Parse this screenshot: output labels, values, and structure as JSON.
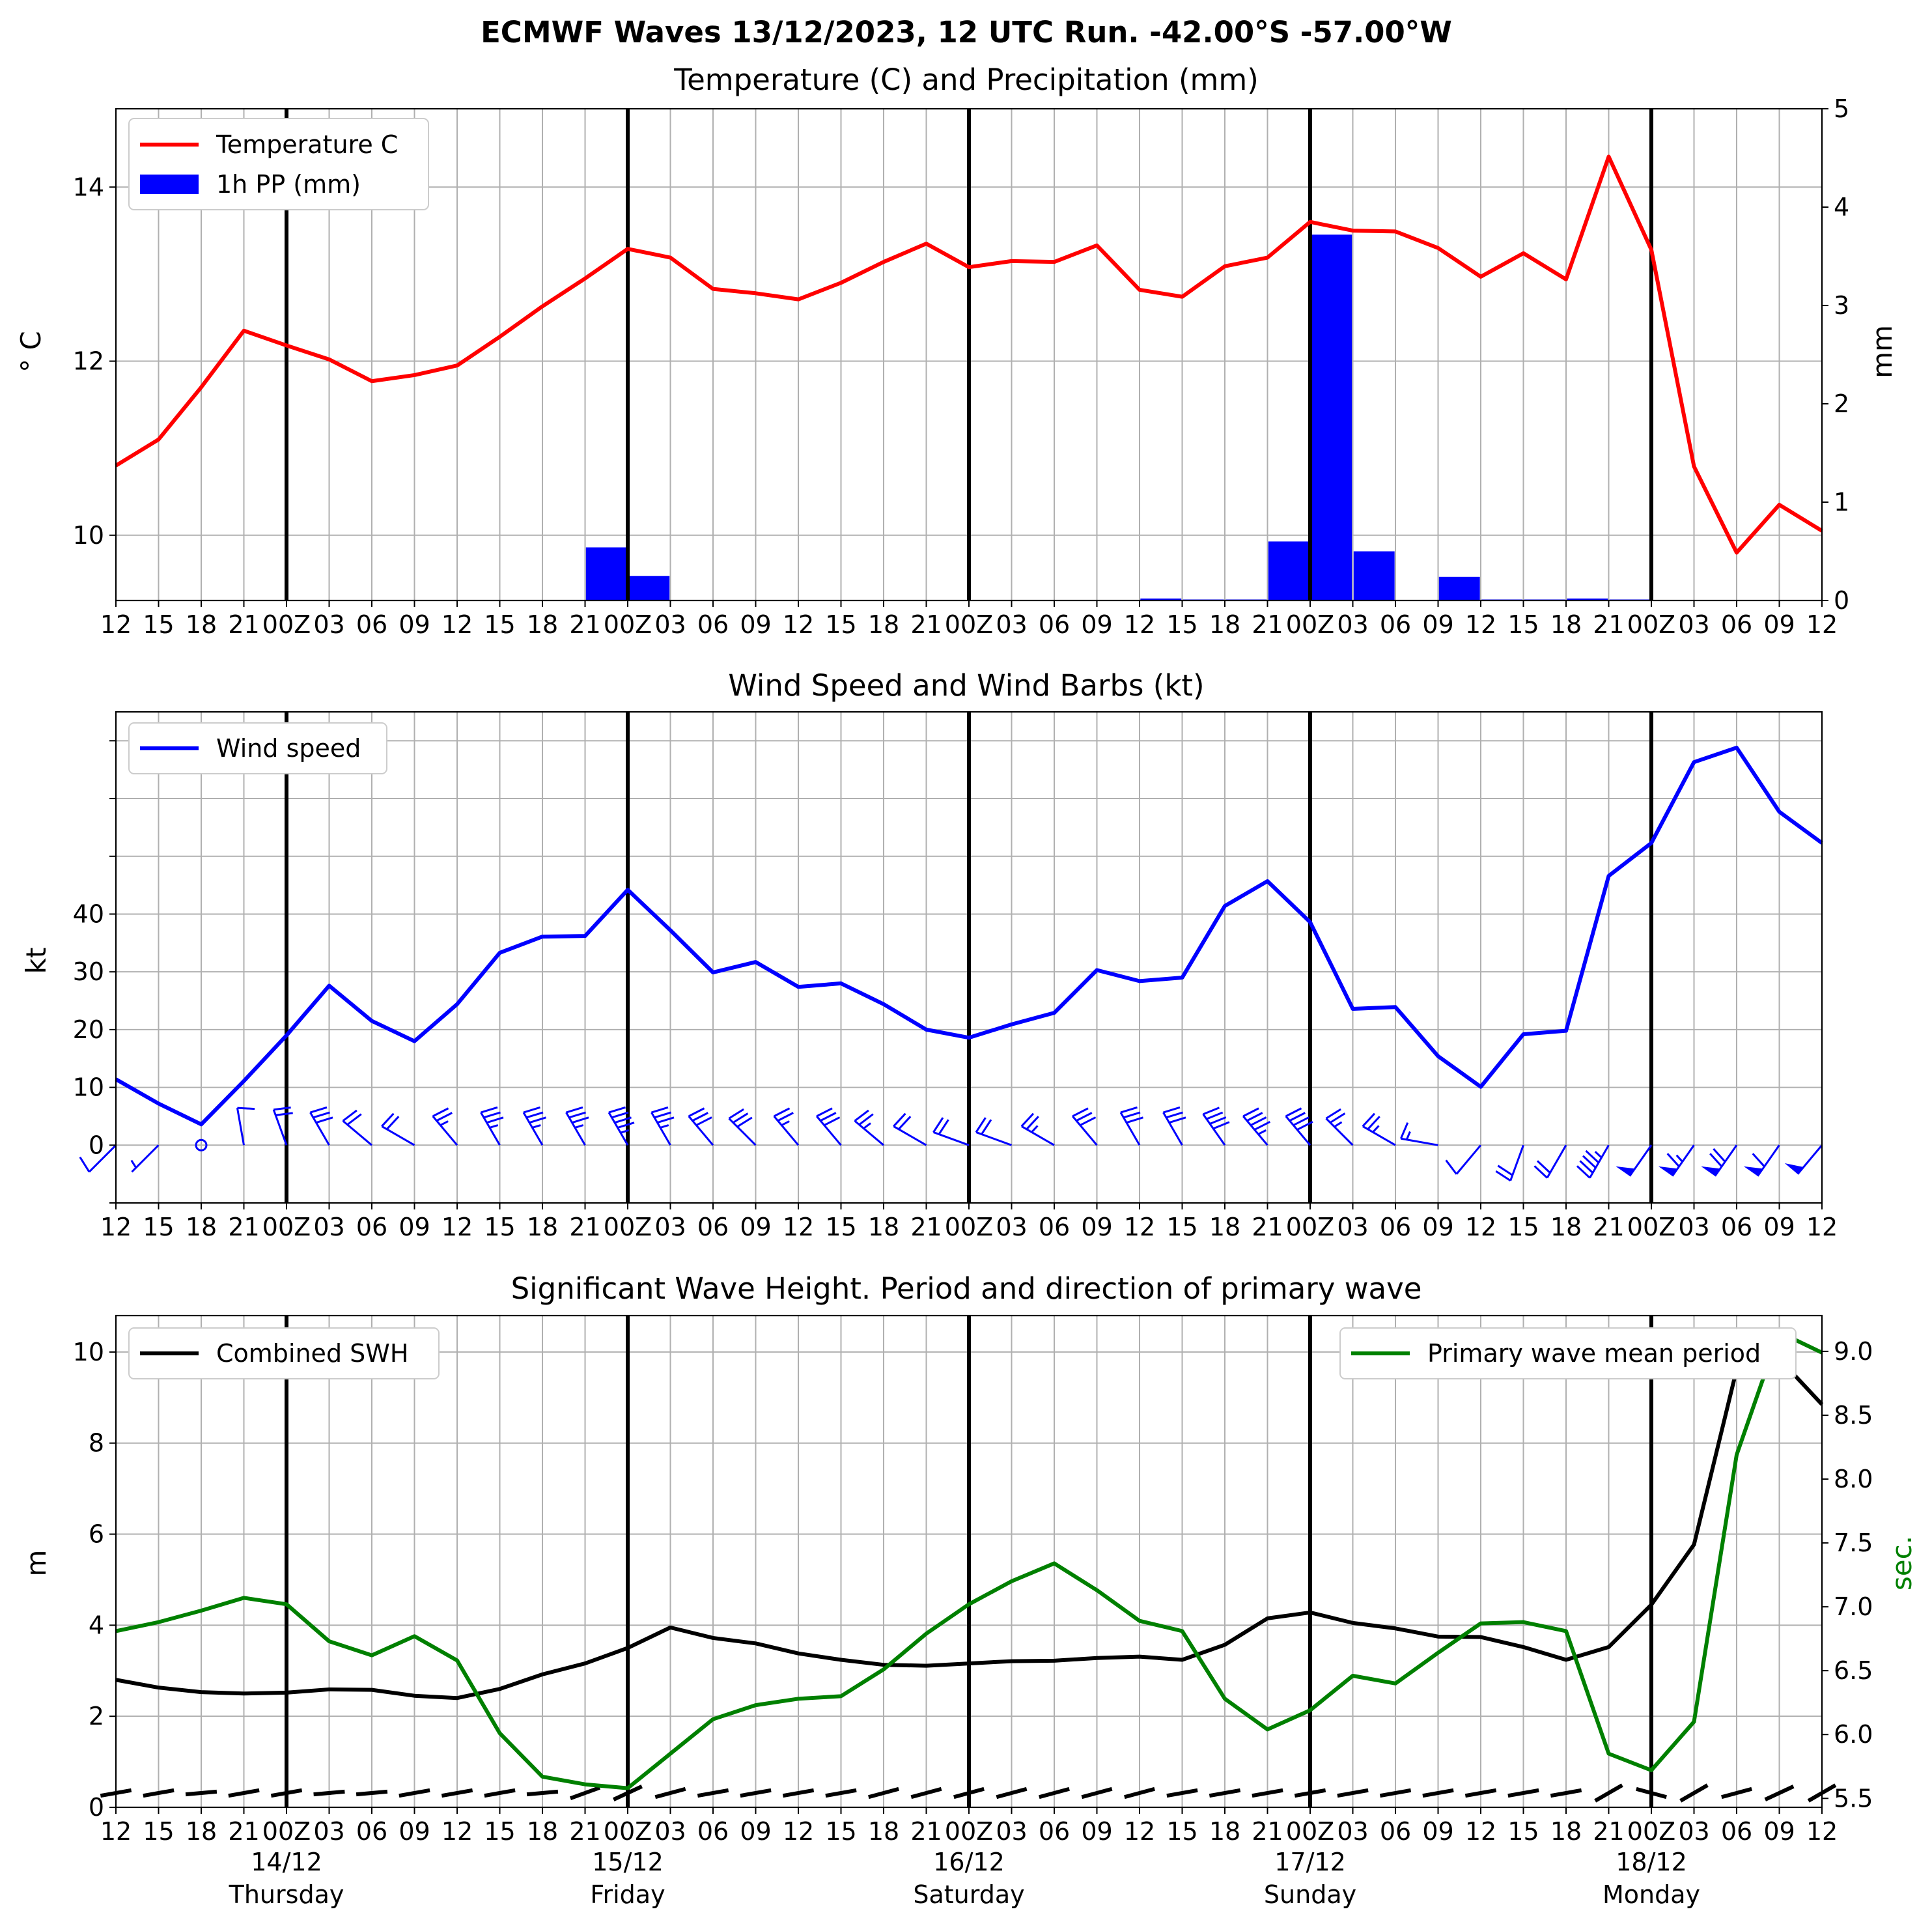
{
  "suptitle": "ECMWF Waves 13/12/2023, 12 UTC Run. -42.00°S -57.00°W",
  "colors": {
    "temperature": "#ff0000",
    "precip": "#0000ff",
    "wind": "#0000ff",
    "swh": "#000000",
    "period": "#008000",
    "grid": "#b0b0b0"
  },
  "x_tick_labels": [
    "12",
    "15",
    "18",
    "21",
    "00Z",
    "03",
    "06",
    "09",
    "12",
    "15",
    "18",
    "21",
    "00Z",
    "03",
    "06",
    "09",
    "12",
    "15",
    "18",
    "21",
    "00Z",
    "03",
    "06",
    "09",
    "12",
    "15",
    "18",
    "21",
    "00Z",
    "03",
    "06",
    "09",
    "12",
    "15",
    "18",
    "21",
    "00Z",
    "03",
    "06",
    "09",
    "12"
  ],
  "day_labels": [
    {
      "date": "14/12",
      "weekday": "Thursday"
    },
    {
      "date": "15/12",
      "weekday": "Friday"
    },
    {
      "date": "16/12",
      "weekday": "Saturday"
    },
    {
      "date": "17/12",
      "weekday": "Sunday"
    },
    {
      "date": "18/12",
      "weekday": "Monday"
    }
  ],
  "chart_data": [
    {
      "type": "line",
      "title": "Temperature (C) and Precipitation (mm)",
      "ylabel": "° C",
      "y2label": "mm",
      "ylim": [
        9.25,
        14.9
      ],
      "y2lim": [
        0,
        5
      ],
      "yticks": [
        10,
        12,
        14
      ],
      "y2ticks": [
        0,
        1,
        2,
        3,
        4,
        5
      ],
      "grid": true,
      "legend_position": "top-left",
      "series": [
        {
          "name": "Temperature C",
          "axis": "left",
          "type": "line",
          "values": [
            10.8,
            11.1,
            11.7,
            12.35,
            12.18,
            12.02,
            11.77,
            11.84,
            11.95,
            12.28,
            12.63,
            12.95,
            13.29,
            13.19,
            12.83,
            12.78,
            12.71,
            12.9,
            13.14,
            13.35,
            13.08,
            13.15,
            13.14,
            13.33,
            12.82,
            12.74,
            13.09,
            13.19,
            13.6,
            13.5,
            13.49,
            13.3,
            12.97,
            13.24,
            12.94,
            14.35,
            13.28,
            10.79,
            9.8,
            10.35,
            10.05
          ]
        },
        {
          "name": "1h PP (mm)",
          "axis": "right",
          "type": "bar",
          "values": [
            0,
            0,
            0,
            0,
            0,
            0,
            0,
            0,
            0,
            0,
            0,
            0.54,
            0.25,
            0,
            0,
            0,
            0,
            0,
            0,
            0,
            0,
            0,
            0,
            0,
            0.02,
            0.01,
            0.01,
            0.6,
            3.72,
            0.5,
            0,
            0.24,
            0.01,
            0.01,
            0.02,
            0.01,
            0,
            0,
            0,
            0
          ]
        }
      ]
    },
    {
      "type": "line",
      "title": "Wind Speed and Wind Barbs (kt)",
      "ylabel": "kt",
      "ylim": [
        -10,
        75
      ],
      "yticks": [
        0,
        10,
        20,
        30,
        40
      ],
      "grid": true,
      "legend_position": "top-left",
      "series": [
        {
          "name": "Wind speed",
          "values": [
            11.4,
            7.2,
            3.6,
            11.1,
            19.0,
            27.6,
            21.5,
            18.0,
            24.4,
            33.3,
            36.1,
            36.2,
            44.2,
            37.2,
            29.9,
            31.7,
            27.4,
            28.0,
            24.4,
            20.0,
            18.6,
            20.9,
            22.9,
            30.3,
            28.4,
            29.0,
            41.4,
            45.7,
            38.6,
            23.6,
            23.9,
            15.4,
            10.1,
            19.2,
            19.8,
            46.6,
            52.3,
            66.3,
            68.8,
            57.7,
            52.3
          ]
        }
      ],
      "wind_barb_direction_deg": [
        225,
        225,
        0,
        350,
        340,
        330,
        310,
        300,
        320,
        330,
        330,
        330,
        330,
        330,
        320,
        315,
        320,
        320,
        310,
        300,
        290,
        290,
        300,
        320,
        330,
        330,
        325,
        320,
        320,
        315,
        300,
        280,
        220,
        200,
        210,
        210,
        215,
        215,
        215,
        215,
        220
      ]
    },
    {
      "type": "line",
      "title": "Significant Wave Height. Period and direction of primary wave",
      "ylabel": "m",
      "y2label": "sec.",
      "ylim": [
        0,
        10.8
      ],
      "y2lim": [
        5.43,
        9.28
      ],
      "yticks": [
        0,
        2,
        4,
        6,
        8,
        10
      ],
      "y2ticks": [
        5.5,
        6.0,
        6.5,
        7.0,
        7.5,
        8.0,
        8.5,
        9.0
      ],
      "grid": true,
      "legend_position": "top-left and top-right",
      "series": [
        {
          "name": "Combined SWH",
          "axis": "left",
          "values": [
            2.8,
            2.63,
            2.53,
            2.5,
            2.52,
            2.59,
            2.58,
            2.45,
            2.4,
            2.6,
            2.92,
            3.16,
            3.5,
            3.95,
            3.72,
            3.6,
            3.38,
            3.24,
            3.13,
            3.11,
            3.16,
            3.21,
            3.22,
            3.28,
            3.31,
            3.24,
            3.57,
            4.15,
            4.28,
            4.05,
            3.93,
            3.75,
            3.74,
            3.52,
            3.24,
            3.52,
            4.45,
            5.77,
            9.62,
            9.85,
            8.85
          ]
        },
        {
          "name": "Primary wave mean period",
          "axis": "right",
          "values": [
            6.81,
            6.88,
            6.97,
            7.07,
            7.02,
            6.73,
            6.62,
            6.77,
            6.58,
            6.01,
            5.67,
            5.61,
            5.58,
            5.85,
            6.12,
            6.23,
            6.28,
            6.3,
            6.51,
            6.79,
            7.02,
            7.2,
            7.34,
            7.13,
            6.89,
            6.81,
            6.28,
            6.04,
            6.19,
            6.46,
            6.4,
            6.64,
            6.87,
            6.88,
            6.81,
            5.85,
            5.72,
            6.1,
            8.19,
            9.15,
            8.99
          ]
        }
      ],
      "wave_direction_arrows_deg": [
        260,
        260,
        265,
        260,
        260,
        265,
        265,
        260,
        260,
        260,
        265,
        250,
        245,
        255,
        260,
        260,
        260,
        260,
        255,
        255,
        255,
        255,
        255,
        255,
        255,
        260,
        260,
        260,
        260,
        260,
        260,
        260,
        260,
        260,
        260,
        240,
        285,
        240,
        255,
        245,
        240
      ]
    }
  ]
}
